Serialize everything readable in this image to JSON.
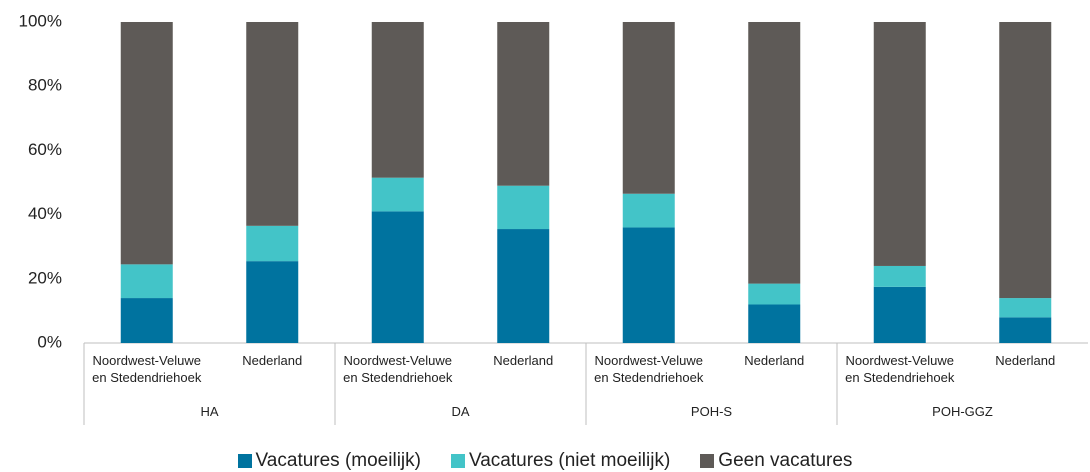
{
  "chart_data": {
    "type": "stacked_bar",
    "categories": [
      "Noordwest-Veluwe en Stedendriehoek",
      "Nederland",
      "Noordwest-Veluwe en Stedendriehoek",
      "Nederland",
      "Noordwest-Veluwe en Stedendriehoek",
      "Nederland",
      "Noordwest-Veluwe en Stedendriehoek",
      "Nederland"
    ],
    "groups": [
      "HA",
      "DA",
      "POH-S",
      "POH-GGZ"
    ],
    "series": [
      {
        "name": "Vacatures (moeilijk)",
        "color": "#00739f",
        "values": [
          14,
          25.5,
          41,
          35.5,
          36,
          12,
          17.5,
          8
        ]
      },
      {
        "name": "Vacatures (niet moeilijk)",
        "color": "#43c4c8",
        "values": [
          10.5,
          11,
          10.5,
          13.5,
          10.5,
          6.5,
          6.5,
          6
        ]
      },
      {
        "name": "Geen vacatures",
        "color": "#5e5a57",
        "values": [
          75.5,
          63.5,
          48.5,
          51,
          53.5,
          81.5,
          76,
          86
        ]
      }
    ],
    "ylim": [
      0,
      100
    ],
    "yticks": [
      {
        "value": 0,
        "label": "0%"
      },
      {
        "value": 20,
        "label": "20%"
      },
      {
        "value": 40,
        "label": "40%"
      },
      {
        "value": 60,
        "label": "60%"
      },
      {
        "value": 80,
        "label": "80%"
      },
      {
        "value": 100,
        "label": "100%"
      }
    ],
    "legend": "bottom"
  }
}
